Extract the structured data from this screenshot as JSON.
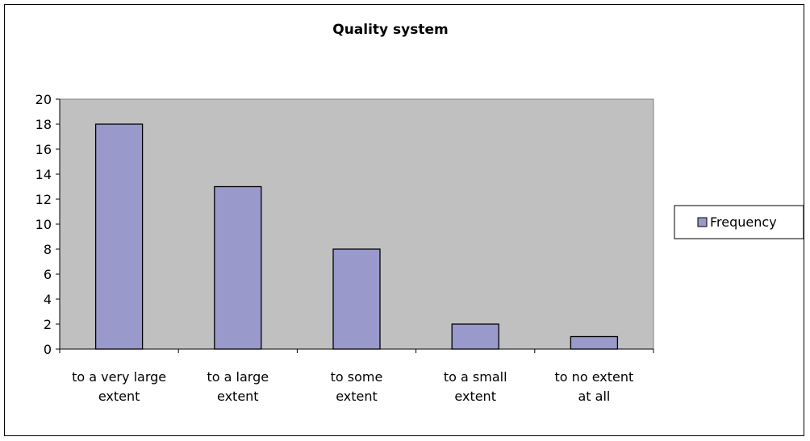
{
  "chart_data": {
    "type": "bar",
    "title": "Quality system",
    "xlabel": "",
    "ylabel": "",
    "categories": [
      [
        "to a very large",
        "extent"
      ],
      [
        "to a large",
        "extent"
      ],
      [
        "to some",
        "extent"
      ],
      [
        "to a small",
        "extent"
      ],
      [
        "to no extent",
        "at all"
      ]
    ],
    "series": [
      {
        "name": "Frequency",
        "values": [
          18,
          13,
          8,
          2,
          1
        ]
      }
    ],
    "ylim": [
      0,
      20
    ],
    "yticks": [
      "0",
      "2",
      "4",
      "6",
      "8",
      "10",
      "12",
      "14",
      "16",
      "18",
      "20"
    ],
    "grid": false,
    "legend_position": "right",
    "colors": {
      "bar_fill": "#9999cc",
      "bar_stroke": "#000000",
      "plot_background": "#c0c0c0",
      "page_background": "#ffffff"
    }
  }
}
